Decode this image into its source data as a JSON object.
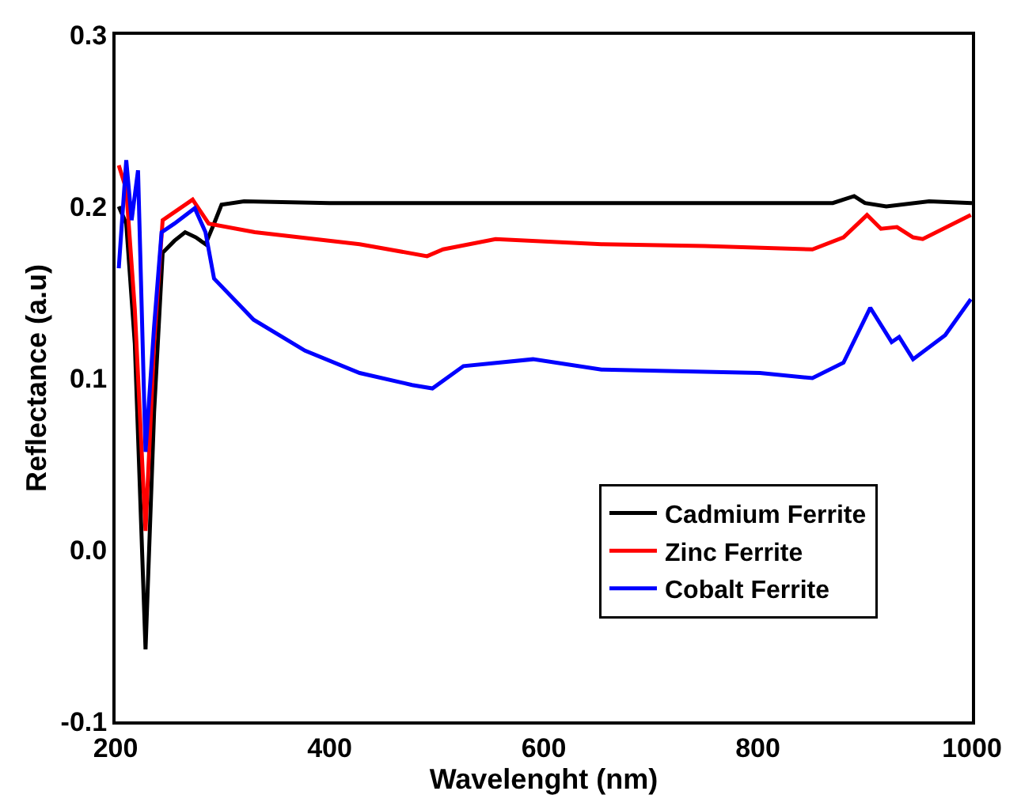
{
  "chart_data": {
    "type": "line",
    "xlabel": "Wavelenght (nm)",
    "ylabel": "Reflectance (a.u)",
    "xlim": [
      200,
      1000
    ],
    "ylim": [
      -0.1,
      0.3
    ],
    "xticks": [
      200,
      400,
      600,
      800,
      1000
    ],
    "yticks": [
      {
        "value": -0.1,
        "label": "-0.1"
      },
      {
        "value": 0,
        "label": "0.0"
      },
      {
        "value": 0.1,
        "label": "0.1"
      },
      {
        "value": 0.2,
        "label": "0.2"
      },
      {
        "value": 0.3,
        "label": "0.3"
      }
    ],
    "legend": "bottom right",
    "marker": "none",
    "line_style": "solid",
    "series": [
      {
        "name": "Cadmium Ferrite",
        "color": "#000000",
        "x": [
          203,
          210,
          218,
          228,
          236,
          244,
          255,
          265,
          275,
          284,
          292,
          299,
          320,
          400,
          500,
          600,
          700,
          800,
          870,
          890,
          900,
          920,
          960,
          1000
        ],
        "values": [
          0.2,
          0.19,
          0.12,
          -0.058,
          0.08,
          0.173,
          0.18,
          0.185,
          0.182,
          0.178,
          0.19,
          0.201,
          0.203,
          0.202,
          0.202,
          0.202,
          0.202,
          0.202,
          0.202,
          0.206,
          0.202,
          0.2,
          0.203,
          0.202
        ]
      },
      {
        "name": "Zinc Ferrite",
        "color": "#ff0000",
        "x": [
          203,
          210,
          218,
          228,
          236,
          244,
          258,
          272,
          287,
          330,
          428,
          491,
          506,
          555,
          654,
          750,
          851,
          880,
          902,
          915,
          930,
          945,
          954,
          999
        ],
        "values": [
          0.224,
          0.21,
          0.14,
          0.011,
          0.12,
          0.192,
          0.198,
          0.204,
          0.19,
          0.185,
          0.178,
          0.171,
          0.175,
          0.181,
          0.178,
          0.177,
          0.175,
          0.182,
          0.195,
          0.187,
          0.188,
          0.182,
          0.181,
          0.195
        ]
      },
      {
        "name": "Cobalt Ferrite",
        "color": "#0000ff",
        "x": [
          203,
          210,
          215,
          221,
          228,
          236,
          243,
          255,
          274,
          284,
          292,
          329,
          377,
          428,
          477,
          496,
          525,
          590,
          654,
          802,
          851,
          880,
          905,
          925,
          932,
          945,
          975,
          999
        ],
        "values": [
          0.164,
          0.227,
          0.192,
          0.221,
          0.057,
          0.13,
          0.185,
          0.19,
          0.199,
          0.185,
          0.158,
          0.134,
          0.116,
          0.103,
          0.096,
          0.094,
          0.107,
          0.111,
          0.105,
          0.103,
          0.1,
          0.109,
          0.141,
          0.121,
          0.124,
          0.111,
          0.125,
          0.146
        ]
      }
    ]
  }
}
